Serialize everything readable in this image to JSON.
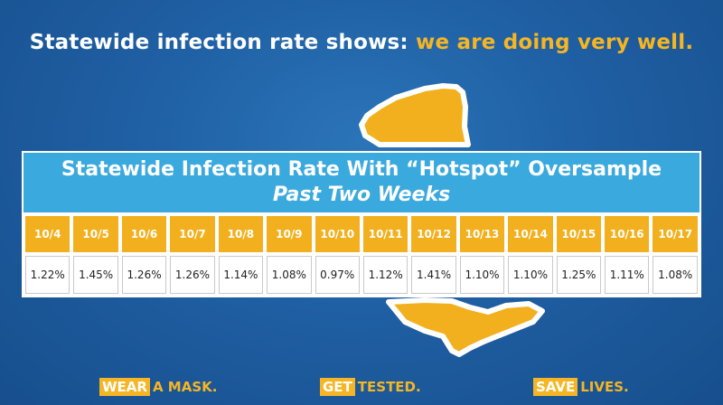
{
  "headline": {
    "lead": "Statewide infection rate shows:",
    "highlight": "we are doing very well."
  },
  "table": {
    "title": "Statewide Infection Rate With “Hotspot” Oversample",
    "subtitle": "Past Two Weeks",
    "dates": [
      "10/4",
      "10/5",
      "10/6",
      "10/7",
      "10/8",
      "10/9",
      "10/10",
      "10/11",
      "10/12",
      "10/13",
      "10/14",
      "10/15",
      "10/16",
      "10/17"
    ],
    "rates": [
      "1.22%",
      "1.45%",
      "1.26%",
      "1.26%",
      "1.14%",
      "1.08%",
      "0.97%",
      "1.12%",
      "1.41%",
      "1.10%",
      "1.10%",
      "1.25%",
      "1.11%",
      "1.08%"
    ]
  },
  "footer": {
    "wear_tag": "WEAR",
    "wear_rest": "A MASK.",
    "get_tag": "GET",
    "get_rest": "TESTED.",
    "save_tag": "SAVE",
    "save_rest": "LIVES."
  },
  "colors": {
    "background": "#1f5fa3",
    "accent": "#f5b524",
    "title_bar": "#3aa9de"
  }
}
